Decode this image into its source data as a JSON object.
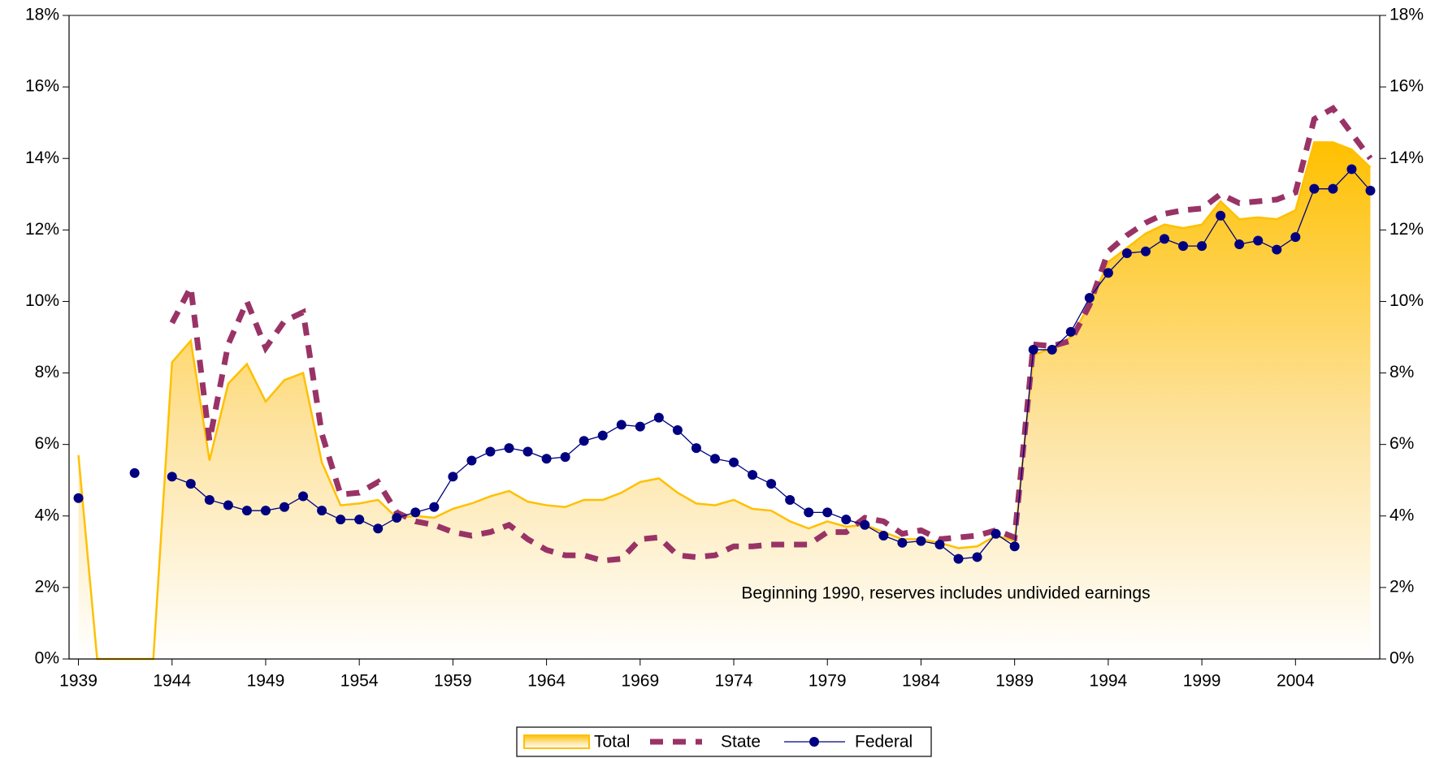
{
  "chart_data": {
    "type": "line",
    "annotation": "Beginning 1990, reserves includes undivided earnings",
    "x": [
      1939,
      1940,
      1941,
      1942,
      1943,
      1944,
      1945,
      1946,
      1947,
      1948,
      1949,
      1950,
      1951,
      1952,
      1953,
      1954,
      1955,
      1956,
      1957,
      1958,
      1959,
      1960,
      1961,
      1962,
      1963,
      1964,
      1965,
      1966,
      1967,
      1968,
      1969,
      1970,
      1971,
      1972,
      1973,
      1974,
      1975,
      1976,
      1977,
      1978,
      1979,
      1980,
      1981,
      1982,
      1983,
      1984,
      1985,
      1986,
      1987,
      1988,
      1989,
      1990,
      1991,
      1992,
      1993,
      1994,
      1995,
      1996,
      1997,
      1998,
      1999,
      2000,
      2001,
      2002,
      2003,
      2004,
      2005,
      2006,
      2007,
      2008
    ],
    "xlim": [
      1938.5,
      2008.5
    ],
    "xticks": [
      1939,
      1944,
      1949,
      1954,
      1959,
      1964,
      1969,
      1974,
      1979,
      1984,
      1989,
      1994,
      1999,
      2004
    ],
    "ylim": [
      0,
      18
    ],
    "yticks": [
      {
        "value": 0,
        "label": "0%"
      },
      {
        "value": 2,
        "label": "2%"
      },
      {
        "value": 4,
        "label": "4%"
      },
      {
        "value": 6,
        "label": "6%"
      },
      {
        "value": 8,
        "label": "8%"
      },
      {
        "value": 10,
        "label": "10%"
      },
      {
        "value": 12,
        "label": "12%"
      },
      {
        "value": 14,
        "label": "14%"
      },
      {
        "value": 16,
        "label": "16%"
      },
      {
        "value": 18,
        "label": "18%"
      }
    ],
    "y2lim": [
      0,
      18
    ],
    "y2ticks": [
      {
        "value": 0,
        "label": "0%"
      },
      {
        "value": 2,
        "label": "2%"
      },
      {
        "value": 4,
        "label": "4%"
      },
      {
        "value": 6,
        "label": "6%"
      },
      {
        "value": 8,
        "label": "8%"
      },
      {
        "value": 10,
        "label": "10%"
      },
      {
        "value": 12,
        "label": "12%"
      },
      {
        "value": 14,
        "label": "14%"
      },
      {
        "value": 16,
        "label": "16%"
      },
      {
        "value": 18,
        "label": "18%"
      }
    ],
    "legend": "bottom",
    "series": [
      {
        "name": "Total",
        "color": "#ffc000",
        "style": "area",
        "values": [
          5.7,
          0,
          0,
          0,
          0,
          8.3,
          8.9,
          5.55,
          7.7,
          8.25,
          7.2,
          7.8,
          8.0,
          5.5,
          4.3,
          4.35,
          4.45,
          3.95,
          4.0,
          3.95,
          4.2,
          4.35,
          4.55,
          4.7,
          4.4,
          4.3,
          4.25,
          4.45,
          4.45,
          4.65,
          4.95,
          5.05,
          4.65,
          4.35,
          4.3,
          4.45,
          4.2,
          4.15,
          3.85,
          3.65,
          3.85,
          3.7,
          3.75,
          3.55,
          3.35,
          3.35,
          3.25,
          3.1,
          3.15,
          3.45,
          3.3,
          8.5,
          8.7,
          9.0,
          9.9,
          11.1,
          11.5,
          11.9,
          12.15,
          12.05,
          12.15,
          12.8,
          12.3,
          12.35,
          12.3,
          12.55,
          14.45,
          14.45,
          14.25,
          13.75
        ]
      },
      {
        "name": "State",
        "color": "#993366",
        "style": "dashed",
        "values": [
          null,
          null,
          null,
          null,
          null,
          9.4,
          10.4,
          6.1,
          8.8,
          10.0,
          8.7,
          9.45,
          9.7,
          6.3,
          4.6,
          4.65,
          4.95,
          4.1,
          3.85,
          3.75,
          3.55,
          3.45,
          3.55,
          3.75,
          3.35,
          3.05,
          2.9,
          2.9,
          2.75,
          2.8,
          3.35,
          3.4,
          2.9,
          2.85,
          2.9,
          3.15,
          3.15,
          3.2,
          3.2,
          3.2,
          3.55,
          3.55,
          3.95,
          3.85,
          3.5,
          3.6,
          3.35,
          3.4,
          3.45,
          3.6,
          3.4,
          8.8,
          8.75,
          8.9,
          9.9,
          11.4,
          11.85,
          12.2,
          12.45,
          12.55,
          12.6,
          13.0,
          12.75,
          12.8,
          12.85,
          13.05,
          15.1,
          15.4,
          14.7,
          14.0
        ]
      },
      {
        "name": "Federal",
        "color": "#000080",
        "style": "line-marker",
        "values": [
          4.5,
          null,
          null,
          5.2,
          null,
          5.1,
          4.9,
          4.45,
          4.3,
          4.15,
          4.15,
          4.25,
          4.55,
          4.15,
          3.9,
          3.9,
          3.65,
          3.95,
          4.1,
          4.25,
          5.1,
          5.55,
          5.8,
          5.9,
          5.8,
          5.6,
          5.65,
          6.1,
          6.25,
          6.55,
          6.5,
          6.75,
          6.4,
          5.9,
          5.6,
          5.5,
          5.15,
          4.9,
          4.45,
          4.1,
          4.1,
          3.9,
          3.75,
          3.45,
          3.25,
          3.3,
          3.2,
          2.8,
          2.85,
          3.5,
          3.15,
          8.65,
          8.65,
          9.15,
          10.1,
          10.8,
          11.35,
          11.4,
          11.75,
          11.55,
          11.55,
          12.4,
          11.6,
          11.7,
          11.45,
          11.8,
          13.15,
          13.15,
          13.7,
          13.1
        ]
      }
    ]
  }
}
